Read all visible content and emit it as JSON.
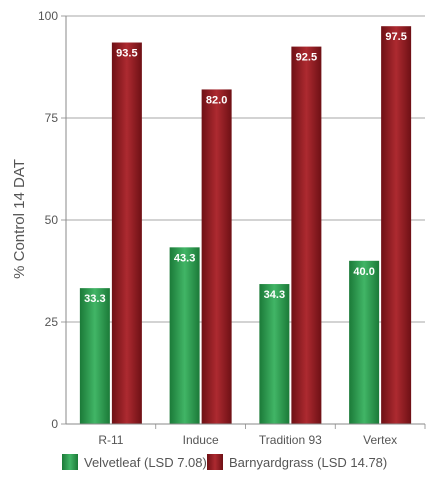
{
  "chart_data": {
    "type": "bar",
    "categories": [
      "R-11",
      "Induce",
      "Tradition 93",
      "Vertex"
    ],
    "series": [
      {
        "name": "Velvetleaf (LSD 7.08)",
        "values": [
          33.3,
          43.3,
          34.3,
          40.0
        ],
        "labels": [
          "33.3",
          "43.3",
          "34.3",
          "40.0"
        ],
        "color": "#2e9a4e"
      },
      {
        "name": "Barnyardgrass (LSD 14.78)",
        "values": [
          93.5,
          82.0,
          92.5,
          97.5
        ],
        "labels": [
          "93.5",
          "82.0",
          "92.5",
          "97.5"
        ],
        "color": "#8e1a1f"
      }
    ],
    "ylabel": "% Control 14 DAT",
    "ylim": [
      0,
      100
    ],
    "yticks": [
      0,
      25,
      50,
      75,
      100
    ],
    "grid": true,
    "legend": "bottom"
  }
}
